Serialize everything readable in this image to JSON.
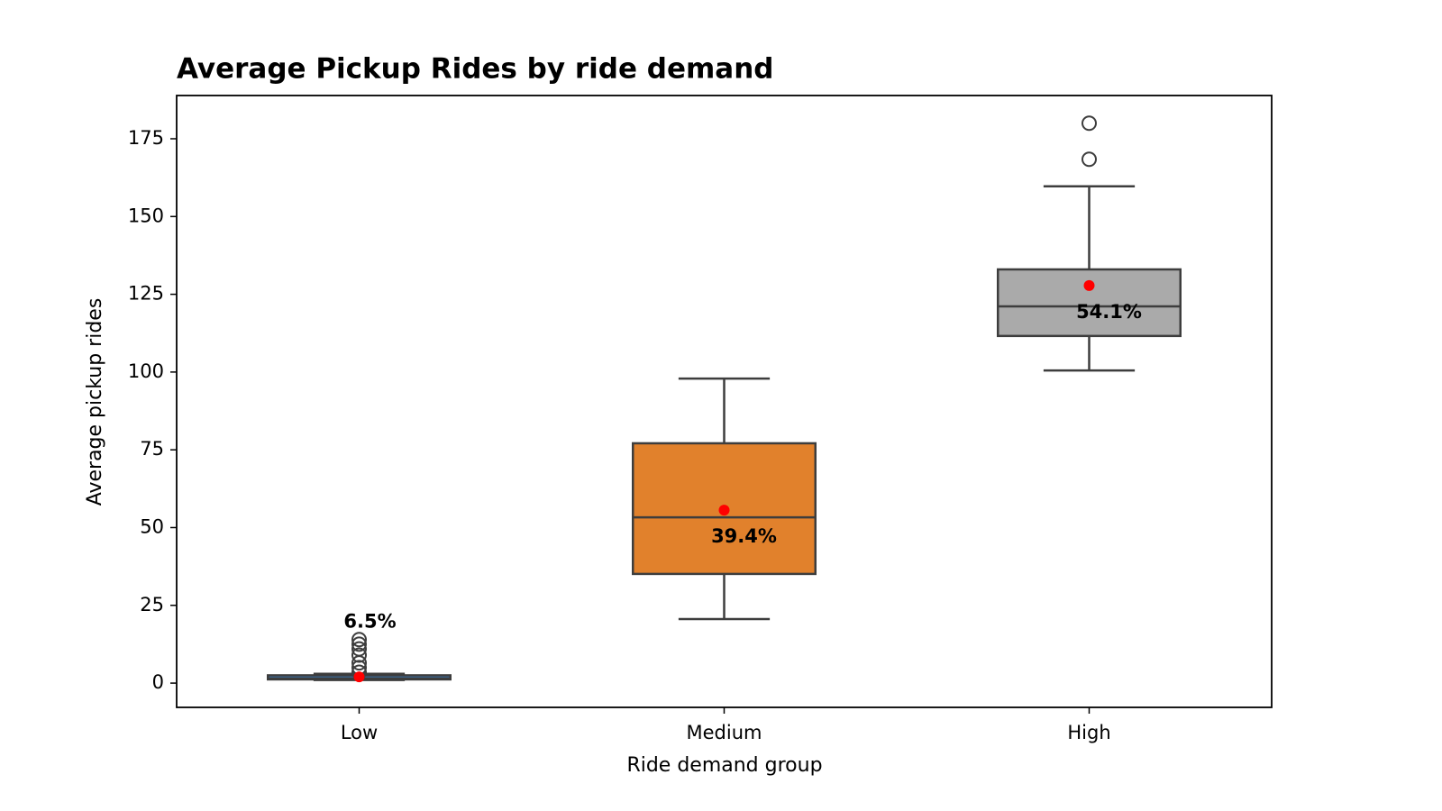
{
  "chart_data": {
    "type": "box",
    "title": "Average Pickup Rides by ride demand",
    "x_label": "Ride demand group",
    "y_label": "Average pickup rides",
    "categories": [
      "Low",
      "Medium",
      "High"
    ],
    "colors": [
      "#3a75af",
      "#e1812c",
      "#aaaaaa"
    ],
    "mean_color": "#ff0000",
    "boxes": [
      {
        "whislo": 1,
        "q1": 1.2,
        "med": 1.5,
        "q3": 2.5,
        "whishi": 3,
        "mean": 2,
        "fliers": [
          3.5,
          5,
          6.5,
          9,
          11,
          12.5,
          14
        ]
      },
      {
        "whislo": 20.6,
        "q1": 35.1,
        "med": 53.3,
        "q3": 77.1,
        "whishi": 97.9,
        "mean": 55.6,
        "fliers": []
      },
      {
        "whislo": 100.5,
        "q1": 111.6,
        "med": 121.1,
        "q3": 133.0,
        "whishi": 159.7,
        "mean": 127.8,
        "fliers": [
          168.4,
          180.0
        ]
      }
    ],
    "annotations": [
      "6.5%",
      "39.4%",
      "54.1%"
    ],
    "ylim": [
      -7.8,
      188.9
    ],
    "yticks": [
      0,
      25,
      50,
      75,
      100,
      125,
      150,
      175
    ],
    "grid": false
  }
}
